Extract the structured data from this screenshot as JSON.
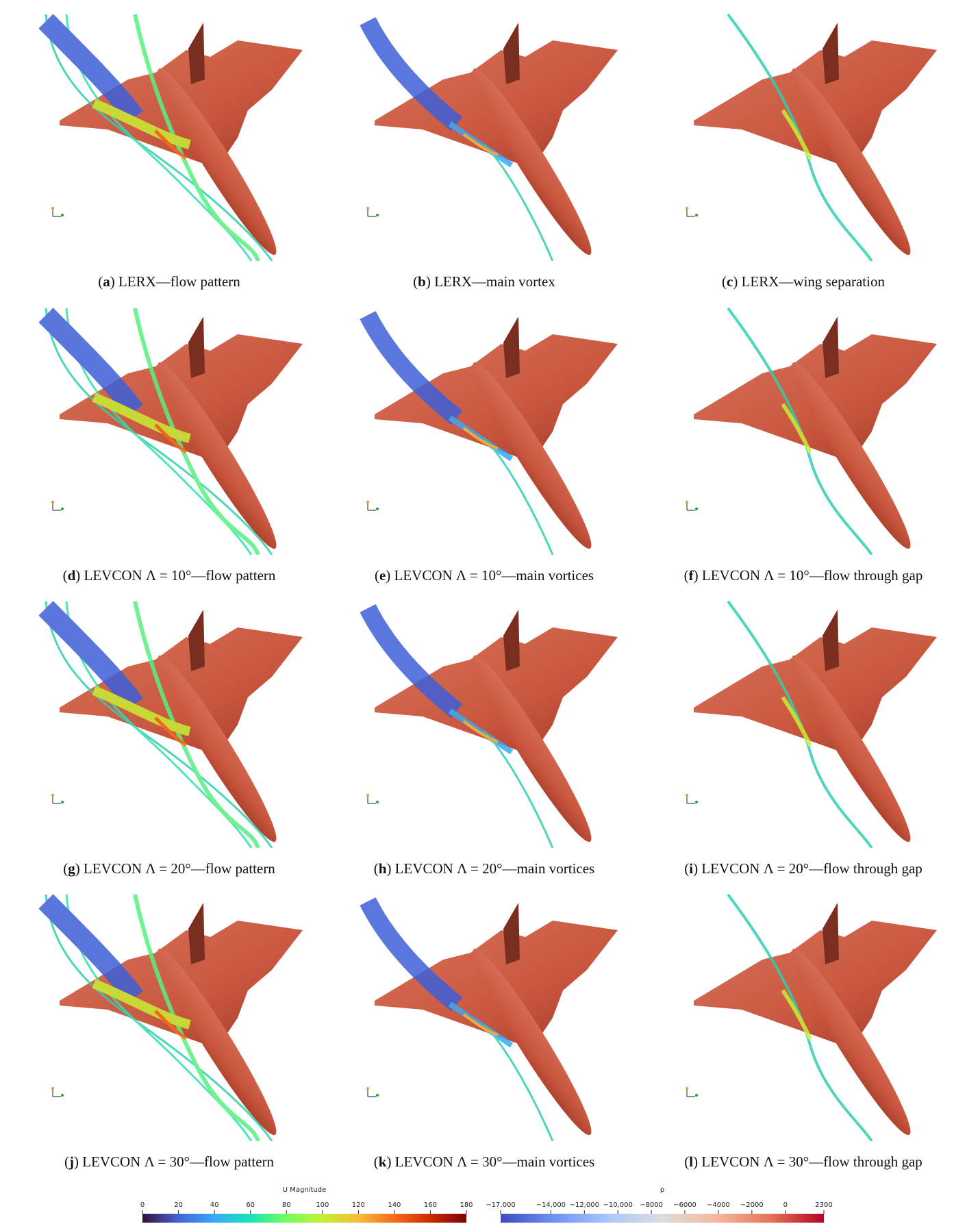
{
  "panels": [
    {
      "caption": [
        "(",
        "a",
        ") LERX—flow pattern"
      ]
    },
    {
      "caption": [
        "(",
        "b",
        ") LERX—main vortex"
      ]
    },
    {
      "caption": [
        "(",
        "c",
        ") LERX—wing separation"
      ]
    },
    {
      "caption": [
        "(",
        "d",
        ") LEVCON Λ = 10°—flow pattern"
      ]
    },
    {
      "caption": [
        "(",
        "e",
        ") LEVCON Λ = 10°—main vortices"
      ]
    },
    {
      "caption": [
        "(",
        "f",
        ") LEVCON Λ = 10°—flow through gap"
      ]
    },
    {
      "caption": [
        "(",
        "g",
        ") LEVCON Λ = 20°—flow pattern"
      ]
    },
    {
      "caption": [
        "(",
        "h",
        ") LEVCON Λ = 20°—main vortices"
      ]
    },
    {
      "caption": [
        "(",
        "i",
        ") LEVCON Λ = 20°—flow through gap"
      ]
    },
    {
      "caption": [
        "(",
        "j",
        ") LEVCON Λ = 30°—flow pattern"
      ]
    },
    {
      "caption": [
        "(",
        "k",
        ") LEVCON Λ = 30°—main vortices"
      ]
    },
    {
      "caption": [
        "(",
        "l",
        ") LEVCON Λ = 30°—flow through gap"
      ]
    }
  ],
  "colorbars": [
    {
      "title": "U Magnitude",
      "lim": [
        0,
        180
      ],
      "ticks": [
        0,
        20,
        40,
        60,
        80,
        100,
        120,
        140,
        160,
        180
      ],
      "colors": [
        "#30123b",
        "#4662d7",
        "#36aaf9",
        "#1ae4b6",
        "#72fe5e",
        "#c8ef34",
        "#faba39",
        "#f66b19",
        "#ca2a04",
        "#7a0403"
      ]
    },
    {
      "title": "p",
      "lim": [
        -17000,
        2300
      ],
      "ticks": [
        {
          "value": -17000,
          "label": "−17,000"
        },
        {
          "value": -14000,
          "label": "−14,000"
        },
        {
          "value": -12000,
          "label": "−12,000"
        },
        {
          "value": -10000,
          "label": "−10,000"
        },
        {
          "value": -8000,
          "label": "−8000"
        },
        {
          "value": -6000,
          "label": "−6000"
        },
        {
          "value": -4000,
          "label": "−4000"
        },
        {
          "value": -2000,
          "label": "−2000"
        },
        0,
        2300
      ],
      "colors": [
        "#3b4cc0",
        "#6f92f3",
        "#aac7fd",
        "#dddddd",
        "#f7b89c",
        "#e7745b",
        "#b40426"
      ]
    }
  ]
}
